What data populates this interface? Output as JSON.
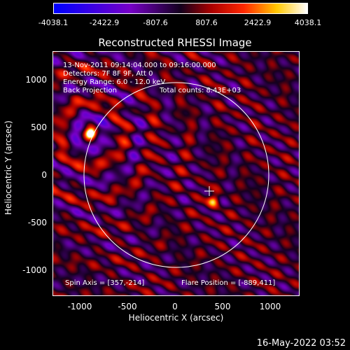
{
  "colorbar": {
    "ticks": [
      "-4038.1",
      "-2422.9",
      "-807.6",
      "807.6",
      "2422.9",
      "4038.1"
    ]
  },
  "title": "Reconstructed RHESSI Image",
  "info": {
    "time_range": "13-Nov-2011 09:14:04.000 to 09:16:00.000",
    "detectors": "Detectors: 7F 8F 9F, Att 0",
    "energy": "Energy Range: 6.0 - 12.0 keV",
    "method": "Back Projection",
    "counts": "Total counts: 8.43E+03",
    "spin_axis": "Spin Axis = [357,-214]",
    "flare_position": "Flare Position = [-889,411]"
  },
  "axes": {
    "xlabel": "Heliocentric X (arcsec)",
    "ylabel": "Heliocentric Y (arcsec)",
    "xticks": [
      "-1000",
      "-500",
      "0",
      "500",
      "1000"
    ],
    "yticks": [
      "1000",
      "500",
      "0",
      "-500",
      "-1000"
    ]
  },
  "timestamp": "16-May-2022 03:52",
  "image": {
    "x_range": [
      -1280,
      1300
    ],
    "y_range": [
      -1300,
      1270
    ],
    "sun_radius_arcsec": 970,
    "crosshair": [
      357,
      -214
    ],
    "flare": [
      -889,
      411
    ],
    "second_source": [
      400,
      -300
    ]
  }
}
